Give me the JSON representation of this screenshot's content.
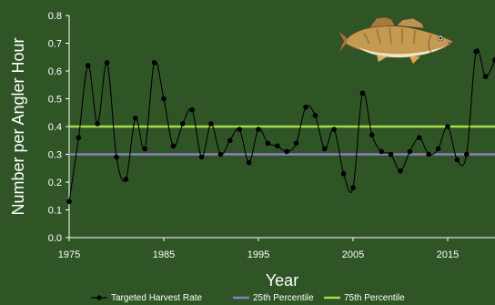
{
  "chart_data": {
    "type": "line",
    "title": "",
    "xlabel": "Year",
    "ylabel": "Number per Angler Hour",
    "xlim": [
      1975,
      2020
    ],
    "ylim": [
      0,
      0.8
    ],
    "x_ticks": [
      1975,
      1985,
      1995,
      2005,
      2015
    ],
    "y_ticks": [
      0.0,
      0.1,
      0.2,
      0.3,
      0.4,
      0.5,
      0.6,
      0.7,
      0.8
    ],
    "grid": false,
    "legend_position": "bottom",
    "series": [
      {
        "name": "Targeted Harvest Rate",
        "color": "#000000",
        "x": [
          1975,
          1976,
          1977,
          1978,
          1979,
          1980,
          1981,
          1982,
          1983,
          1984,
          1985,
          1986,
          1987,
          1988,
          1989,
          1990,
          1991,
          1992,
          1993,
          1994,
          1995,
          1996,
          1997,
          1998,
          1999,
          2000,
          2001,
          2002,
          2003,
          2004,
          2005,
          2006,
          2007,
          2008,
          2009,
          2010,
          2011,
          2012,
          2013,
          2014,
          2015,
          2016,
          2017,
          2018,
          2019,
          2020
        ],
        "y": [
          0.13,
          0.36,
          0.62,
          0.41,
          0.63,
          0.29,
          0.21,
          0.43,
          0.32,
          0.63,
          0.5,
          0.33,
          0.41,
          0.46,
          0.29,
          0.41,
          0.3,
          0.35,
          0.39,
          0.27,
          0.39,
          0.34,
          0.33,
          0.31,
          0.34,
          0.47,
          0.44,
          0.32,
          0.39,
          0.23,
          0.18,
          0.52,
          0.37,
          0.31,
          0.3,
          0.24,
          0.31,
          0.36,
          0.3,
          0.32,
          0.4,
          0.28,
          0.3,
          0.67,
          0.58,
          0.64
        ]
      },
      {
        "name": "25th Percentile",
        "color": "#8c7fc0",
        "value": 0.3
      },
      {
        "name": "75th Percentile",
        "color": "#a6d84a",
        "value": 0.4
      }
    ]
  },
  "colors": {
    "background": "#2f5527",
    "axis": "#ffffff",
    "text": "#ffffff"
  },
  "icons": {
    "decoration": "walleye-fish-icon"
  }
}
